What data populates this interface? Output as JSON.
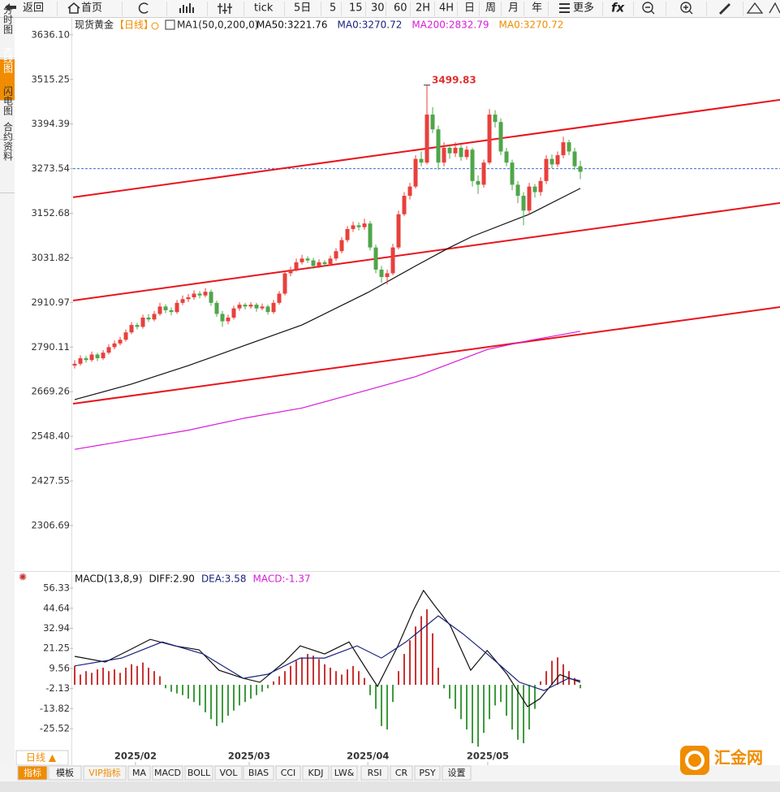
{
  "toolbar": {
    "items": [
      "返回",
      "首页",
      "tick",
      "5日",
      "5",
      "15",
      "30",
      "60",
      "2H",
      "4H",
      "日",
      "周",
      "月",
      "年",
      "更多"
    ]
  },
  "sidebar": [
    "分时图",
    "K线图",
    "闪电图",
    "合约资料"
  ],
  "legend": {
    "name": "现货黄金",
    "period": "【日线】",
    "ma_spec": "MA1(50,0,200,0)",
    "ma_values": [
      {
        "text": "MA50:3221.76",
        "color": "#111"
      },
      {
        "text": "MA0:3270.72",
        "color": "#1a237e"
      },
      {
        "text": "MA200:2832.79",
        "color": "#d81bd8"
      },
      {
        "text": "MA0:3270.72",
        "color": "#f08c00"
      }
    ]
  },
  "macd_legend": [
    {
      "text": "MACD(13,8,9)",
      "color": "#111"
    },
    {
      "text": "DIFF:2.90",
      "color": "#111"
    },
    {
      "text": "DEA:3.58",
      "color": "#1a237e"
    },
    {
      "text": "MACD:-1.37",
      "color": "#d81bd8"
    }
  ],
  "period_button": "日线 ▲",
  "tabs": [
    "指标",
    "模板",
    "VIP指标",
    "MA",
    "MACD",
    "BOLL",
    "VOL",
    "BIAS",
    "CCI",
    "KDJ",
    "LW&",
    "RSI",
    "CR",
    "PSY",
    "设置"
  ],
  "logo": "汇金网",
  "chart_data": [
    {
      "type": "candlestick",
      "up_color": "#e8403c",
      "down_color": "#4fa64a",
      "xlim": [
        -0.29,
        124.14
      ],
      "ylim": [
        2190,
        3682
      ],
      "yticks": [
        {
          "value": 3636.1,
          "label": "3636.10"
        },
        3515.25,
        3394.39,
        3273.54,
        3152.68,
        3031.82,
        2910.97,
        2790.11,
        2669.26,
        {
          "value": 2548.4,
          "label": "2548.40"
        },
        2427.55,
        2306.69
      ],
      "price_line": 3273.54,
      "ohlc": [
        [
          2740,
          2755,
          2732,
          2745
        ],
        [
          2745,
          2768,
          2740,
          2760
        ],
        [
          2760,
          2766,
          2748,
          2755
        ],
        [
          2755,
          2778,
          2750,
          2770
        ],
        [
          2770,
          2775,
          2752,
          2760
        ],
        [
          2760,
          2782,
          2755,
          2775
        ],
        [
          2775,
          2798,
          2770,
          2790
        ],
        [
          2790,
          2808,
          2784,
          2800
        ],
        [
          2800,
          2818,
          2795,
          2810
        ],
        [
          2810,
          2838,
          2805,
          2830
        ],
        [
          2830,
          2858,
          2825,
          2850
        ],
        [
          2850,
          2856,
          2838,
          2845
        ],
        [
          2845,
          2878,
          2840,
          2870
        ],
        [
          2870,
          2880,
          2858,
          2865
        ],
        [
          2865,
          2888,
          2860,
          2880
        ],
        [
          2880,
          2910,
          2875,
          2900
        ],
        [
          2900,
          2906,
          2882,
          2890
        ],
        [
          2890,
          2898,
          2876,
          2885
        ],
        [
          2885,
          2918,
          2880,
          2910
        ],
        [
          2910,
          2930,
          2904,
          2920
        ],
        [
          2920,
          2934,
          2912,
          2925
        ],
        [
          2925,
          2944,
          2918,
          2935
        ],
        [
          2935,
          2942,
          2922,
          2930
        ],
        [
          2930,
          2950,
          2925,
          2940
        ],
        [
          2940,
          2946,
          2902,
          2910
        ],
        [
          2910,
          2916,
          2872,
          2880
        ],
        [
          2880,
          2888,
          2845,
          2860
        ],
        [
          2860,
          2878,
          2852,
          2870
        ],
        [
          2870,
          2902,
          2865,
          2895
        ],
        [
          2895,
          2912,
          2888,
          2905
        ],
        [
          2905,
          2910,
          2892,
          2900
        ],
        [
          2900,
          2912,
          2894,
          2905
        ],
        [
          2905,
          2910,
          2886,
          2895
        ],
        [
          2895,
          2908,
          2890,
          2900
        ],
        [
          2900,
          2905,
          2878,
          2885
        ],
        [
          2885,
          2918,
          2880,
          2910
        ],
        [
          2910,
          2942,
          2905,
          2935
        ],
        [
          2935,
          2998,
          2930,
          2990
        ],
        [
          2990,
          3008,
          2982,
          3000
        ],
        [
          3000,
          3030,
          2995,
          3020
        ],
        [
          3020,
          3040,
          3014,
          3030
        ],
        [
          3030,
          3036,
          3018,
          3025
        ],
        [
          3025,
          3032,
          3002,
          3010
        ],
        [
          3010,
          3028,
          3004,
          3020
        ],
        [
          3020,
          3026,
          3008,
          3015
        ],
        [
          3015,
          3038,
          3010,
          3030
        ],
        [
          3030,
          3058,
          3024,
          3050
        ],
        [
          3050,
          3088,
          3044,
          3080
        ],
        [
          3080,
          3118,
          3074,
          3110
        ],
        [
          3110,
          3130,
          3102,
          3120
        ],
        [
          3120,
          3128,
          3106,
          3115
        ],
        [
          3115,
          3138,
          3108,
          3125
        ],
        [
          3125,
          3132,
          3052,
          3060
        ],
        [
          3060,
          3068,
          2990,
          3000
        ],
        [
          3000,
          3010,
          2965,
          2980
        ],
        [
          2980,
          3000,
          2960,
          2990
        ],
        [
          2990,
          3070,
          2985,
          3060
        ],
        [
          3060,
          3160,
          3055,
          3150
        ],
        [
          3150,
          3210,
          3145,
          3200
        ],
        [
          3200,
          3235,
          3190,
          3225
        ],
        [
          3225,
          3310,
          3220,
          3300
        ],
        [
          3300,
          3320,
          3280,
          3290
        ],
        [
          3290,
          3499.83,
          3285,
          3420
        ],
        [
          3420,
          3440,
          3370,
          3380
        ],
        [
          3380,
          3390,
          3270,
          3290
        ],
        [
          3290,
          3345,
          3280,
          3330
        ],
        [
          3330,
          3340,
          3300,
          3315
        ],
        [
          3315,
          3345,
          3305,
          3330
        ],
        [
          3330,
          3338,
          3295,
          3305
        ],
        [
          3305,
          3335,
          3298,
          3325
        ],
        [
          3325,
          3330,
          3225,
          3240
        ],
        [
          3240,
          3255,
          3205,
          3230
        ],
        [
          3230,
          3298,
          3222,
          3290
        ],
        [
          3290,
          3435,
          3285,
          3420
        ],
        [
          3420,
          3432,
          3385,
          3400
        ],
        [
          3400,
          3410,
          3310,
          3320
        ],
        [
          3320,
          3330,
          3280,
          3290
        ],
        [
          3290,
          3298,
          3215,
          3230
        ],
        [
          3230,
          3240,
          3180,
          3200
        ],
        [
          3200,
          3210,
          3120,
          3160
        ],
        [
          3160,
          3235,
          3150,
          3225
        ],
        [
          3225,
          3232,
          3195,
          3210
        ],
        [
          3210,
          3250,
          3200,
          3240
        ],
        [
          3240,
          3310,
          3232,
          3300
        ],
        [
          3300,
          3312,
          3275,
          3285
        ],
        [
          3285,
          3320,
          3278,
          3310
        ],
        [
          3310,
          3360,
          3302,
          3345
        ],
        [
          3345,
          3352,
          3310,
          3320
        ],
        [
          3320,
          3330,
          3270,
          3280
        ],
        [
          3280,
          3295,
          3245,
          3265
        ]
      ],
      "series": [
        {
          "color": "#111111",
          "x": [
            0,
            10,
            20,
            30,
            40,
            51.6,
            60,
            66,
            70,
            80,
            89
          ],
          "values": [
            2648,
            2690,
            2740,
            2795,
            2850,
            2938,
            3010,
            3060,
            3090,
            3150,
            3220
          ]
        },
        {
          "color": "#d81bd8",
          "x": [
            0,
            20,
            30,
            40,
            51.6,
            60,
            72.7,
            80,
            89
          ],
          "values": [
            2513,
            2565,
            2598,
            2625,
            2674,
            2710,
            2784,
            2808,
            2833
          ]
        }
      ],
      "trendlines": [
        {
          "color": "#e8141c",
          "x": [
            -0.29,
            124.14
          ],
          "values": [
            3195.9,
            3460.0
          ]
        },
        {
          "color": "#e8141c",
          "x": [
            -0.29,
            124.14
          ],
          "values": [
            2916.3,
            3180.4
          ]
        },
        {
          "color": "#e8141c",
          "x": [
            -0.29,
            124.14
          ],
          "values": [
            2636.7,
            2898.7
          ]
        }
      ],
      "annotations": [
        {
          "x": 62,
          "value": 3499.83,
          "color": "#e03030"
        }
      ]
    },
    {
      "type": "macd",
      "xlim": [
        -0.29,
        124.14
      ],
      "ylim": [
        -43.5,
        59.2
      ],
      "yticks": [
        56.33,
        44.64,
        32.94,
        21.25,
        9.56,
        -2.13,
        -13.82,
        -25.52
      ],
      "up_color": "#c83232",
      "down_color": "#3c9a3c",
      "values": [
        11,
        6,
        8,
        7,
        9,
        10,
        8,
        9,
        7,
        10,
        12,
        11,
        13,
        10,
        8,
        5,
        -2,
        -4,
        -5,
        -6,
        -8,
        -10,
        -12,
        -16,
        -20,
        -24,
        -22,
        -18,
        -15,
        -12,
        -10,
        -8,
        -6,
        -4,
        -2,
        2,
        5,
        8,
        11,
        14,
        16,
        18,
        17,
        15,
        12,
        10,
        8,
        6,
        9,
        11,
        8,
        4,
        -6,
        -14,
        -24,
        -26,
        -10,
        8,
        18,
        26,
        34,
        40,
        44,
        30,
        10,
        -2,
        -8,
        -14,
        -20,
        -26,
        -34,
        -36,
        -28,
        -20,
        -12,
        -10,
        -18,
        -26,
        -32,
        -34,
        -26,
        -14,
        2,
        8,
        14,
        16,
        12,
        8,
        4,
        -2
      ],
      "series": [
        {
          "color": "#111111",
          "x": [
            0,
            5.4,
            9.7,
            13.3,
            17.6,
            21.9,
            25.4,
            29.7,
            32.6,
            36.9,
            39.7,
            44,
            48.3,
            51.9,
            53.3,
            56.9,
            59.7,
            61.4,
            63.3,
            66.1,
            69.7,
            72.6,
            76.1,
            79.7,
            81.9,
            85.4,
            89
          ],
          "values": [
            16.6,
            13.3,
            20.4,
            26.5,
            22.7,
            20.4,
            8.5,
            3.8,
            1.5,
            13.3,
            22.7,
            18,
            25,
            6.2,
            -0.9,
            22.7,
            44,
            55,
            46.4,
            34.6,
            8.5,
            20,
            6.2,
            -12.7,
            -8,
            6,
            1.5
          ]
        },
        {
          "color": "#1a237e",
          "x": [
            0,
            8.3,
            15.4,
            22.6,
            29.7,
            34,
            39.7,
            44,
            49.7,
            54,
            58.3,
            64,
            68.3,
            72.6,
            78.3,
            82.6,
            86.9,
            89
          ],
          "values": [
            11,
            15.6,
            25,
            18,
            3.8,
            6.2,
            15.6,
            15.6,
            22.7,
            15.6,
            25,
            40.2,
            29.8,
            18,
            1.5,
            -3.3,
            3.8,
            2.4
          ]
        }
      ],
      "xticks": [
        {
          "value": 10.7,
          "label": "2025/02"
        },
        {
          "value": 30.7,
          "label": "2025/03"
        },
        {
          "value": 51.6,
          "label": "2025/04"
        },
        {
          "value": 72.7,
          "label": "2025/05"
        }
      ]
    }
  ]
}
